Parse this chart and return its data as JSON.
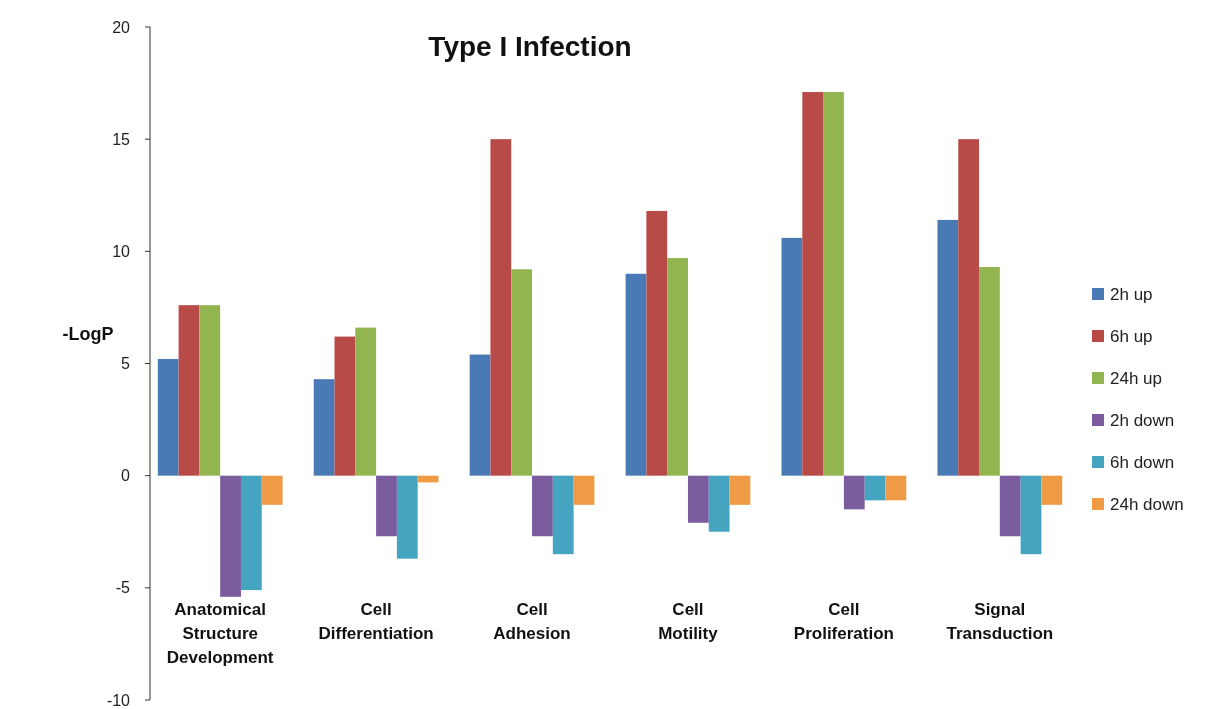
{
  "chart_data": {
    "type": "bar",
    "title": "Type I Infection",
    "ylabel": "-LogP",
    "categories": [
      "Anatomical Structure Development",
      "Cell Differentiation",
      "Cell Adhesion",
      "Cell Motility",
      "Cell Proliferation",
      "Signal Transduction"
    ],
    "series": [
      {
        "name": "2h up",
        "color": "#4a7ab5",
        "values": [
          5.2,
          4.3,
          5.4,
          9.0,
          10.6,
          11.4
        ]
      },
      {
        "name": "6h up",
        "color": "#b84a47",
        "values": [
          7.6,
          6.2,
          15,
          11.8,
          17.1,
          15
        ]
      },
      {
        "name": "24h up",
        "color": "#93b550",
        "values": [
          7.6,
          6.6,
          9.2,
          9.7,
          17.1,
          9.3
        ]
      },
      {
        "name": "2h down",
        "color": "#7b5c9e",
        "values": [
          -5.4,
          -2.7,
          -2.7,
          -2.1,
          -1.5,
          -2.7
        ]
      },
      {
        "name": "6h down",
        "color": "#45a5c0",
        "values": [
          -5.1,
          -3.7,
          -3.5,
          -2.5,
          -1.1,
          -3.5
        ]
      },
      {
        "name": "24h down",
        "color": "#ef9a45",
        "values": [
          -1.3,
          -0.3,
          -1.3,
          -1.3,
          -1.1,
          -1.3
        ]
      }
    ],
    "ylim": [
      -10,
      20
    ],
    "yticks": [
      -10,
      -5,
      0,
      5,
      10,
      15,
      20
    ],
    "grid": false,
    "legend": "right"
  }
}
